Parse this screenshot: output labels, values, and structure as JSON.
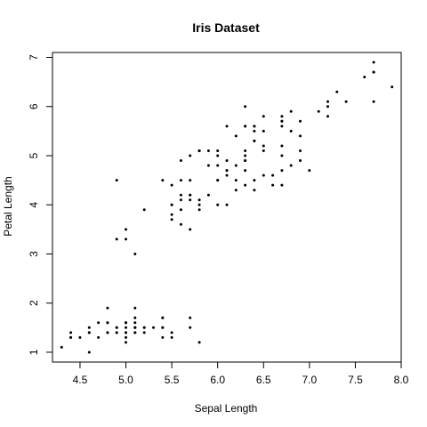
{
  "chart_data": {
    "type": "scatter",
    "title": "Iris Dataset",
    "xlabel": "Sepal Length",
    "ylabel": "Petal Length",
    "xlim": [
      4.2,
      8.0
    ],
    "ylim": [
      0.8,
      7.1
    ],
    "xticks": [
      "4.5",
      "5.0",
      "5.5",
      "6.0",
      "6.5",
      "7.0",
      "7.5",
      "8.0"
    ],
    "yticks": [
      "1",
      "2",
      "3",
      "4",
      "5",
      "6",
      "7"
    ],
    "grid": false,
    "point_color": "#000000",
    "points": [
      [
        5.1,
        1.4
      ],
      [
        4.9,
        1.4
      ],
      [
        4.7,
        1.3
      ],
      [
        4.6,
        1.5
      ],
      [
        5.0,
        1.4
      ],
      [
        5.4,
        1.7
      ],
      [
        4.6,
        1.4
      ],
      [
        5.0,
        1.5
      ],
      [
        4.4,
        1.4
      ],
      [
        4.9,
        1.5
      ],
      [
        5.4,
        1.5
      ],
      [
        4.8,
        1.6
      ],
      [
        4.8,
        1.4
      ],
      [
        4.3,
        1.1
      ],
      [
        5.8,
        1.2
      ],
      [
        5.7,
        1.5
      ],
      [
        5.4,
        1.3
      ],
      [
        5.1,
        1.4
      ],
      [
        5.7,
        1.7
      ],
      [
        5.1,
        1.5
      ],
      [
        5.4,
        1.7
      ],
      [
        5.1,
        1.5
      ],
      [
        4.6,
        1.0
      ],
      [
        5.1,
        1.7
      ],
      [
        4.8,
        1.9
      ],
      [
        5.0,
        1.6
      ],
      [
        5.0,
        1.6
      ],
      [
        5.2,
        1.5
      ],
      [
        5.2,
        1.4
      ],
      [
        4.7,
        1.6
      ],
      [
        4.8,
        1.6
      ],
      [
        5.4,
        1.5
      ],
      [
        5.2,
        1.5
      ],
      [
        5.5,
        1.4
      ],
      [
        4.9,
        1.5
      ],
      [
        5.0,
        1.2
      ],
      [
        5.5,
        1.3
      ],
      [
        4.9,
        1.4
      ],
      [
        4.4,
        1.3
      ],
      [
        5.1,
        1.5
      ],
      [
        5.0,
        1.3
      ],
      [
        4.5,
        1.3
      ],
      [
        4.4,
        1.3
      ],
      [
        5.0,
        1.6
      ],
      [
        5.1,
        1.9
      ],
      [
        4.8,
        1.4
      ],
      [
        5.1,
        1.6
      ],
      [
        4.6,
        1.4
      ],
      [
        5.3,
        1.5
      ],
      [
        5.0,
        1.4
      ],
      [
        7.0,
        4.7
      ],
      [
        6.4,
        4.5
      ],
      [
        6.9,
        4.9
      ],
      [
        5.5,
        4.0
      ],
      [
        6.5,
        4.6
      ],
      [
        5.7,
        4.5
      ],
      [
        6.3,
        4.7
      ],
      [
        4.9,
        3.3
      ],
      [
        6.6,
        4.6
      ],
      [
        5.2,
        3.9
      ],
      [
        5.0,
        3.5
      ],
      [
        5.9,
        4.2
      ],
      [
        6.0,
        4.0
      ],
      [
        6.1,
        4.7
      ],
      [
        5.6,
        3.6
      ],
      [
        6.7,
        4.4
      ],
      [
        5.6,
        4.5
      ],
      [
        5.8,
        4.1
      ],
      [
        6.2,
        4.5
      ],
      [
        5.6,
        3.9
      ],
      [
        5.9,
        4.8
      ],
      [
        6.1,
        4.0
      ],
      [
        6.3,
        4.9
      ],
      [
        6.1,
        4.7
      ],
      [
        6.4,
        4.3
      ],
      [
        6.6,
        4.4
      ],
      [
        6.8,
        4.8
      ],
      [
        6.7,
        5.0
      ],
      [
        6.0,
        4.5
      ],
      [
        5.7,
        3.5
      ],
      [
        5.5,
        3.8
      ],
      [
        5.5,
        3.7
      ],
      [
        5.8,
        3.9
      ],
      [
        6.0,
        5.1
      ],
      [
        5.4,
        4.5
      ],
      [
        6.0,
        4.5
      ],
      [
        6.7,
        4.7
      ],
      [
        6.3,
        4.4
      ],
      [
        5.6,
        4.1
      ],
      [
        5.5,
        4.0
      ],
      [
        5.5,
        4.4
      ],
      [
        6.1,
        4.6
      ],
      [
        5.8,
        4.0
      ],
      [
        5.0,
        3.3
      ],
      [
        5.6,
        4.2
      ],
      [
        5.7,
        4.2
      ],
      [
        5.7,
        4.2
      ],
      [
        6.2,
        4.3
      ],
      [
        5.1,
        3.0
      ],
      [
        5.7,
        4.1
      ],
      [
        6.3,
        6.0
      ],
      [
        5.8,
        5.1
      ],
      [
        7.1,
        5.9
      ],
      [
        6.3,
        5.6
      ],
      [
        6.5,
        5.8
      ],
      [
        7.6,
        6.6
      ],
      [
        4.9,
        4.5
      ],
      [
        7.3,
        6.3
      ],
      [
        6.7,
        5.8
      ],
      [
        7.2,
        6.1
      ],
      [
        6.5,
        5.1
      ],
      [
        6.4,
        5.3
      ],
      [
        6.8,
        5.5
      ],
      [
        5.7,
        5.0
      ],
      [
        5.8,
        5.1
      ],
      [
        6.4,
        5.3
      ],
      [
        6.5,
        5.5
      ],
      [
        7.7,
        6.7
      ],
      [
        7.7,
        6.9
      ],
      [
        6.0,
        5.0
      ],
      [
        6.9,
        5.7
      ],
      [
        5.6,
        4.9
      ],
      [
        7.7,
        6.7
      ],
      [
        6.3,
        4.9
      ],
      [
        6.7,
        5.7
      ],
      [
        7.2,
        6.0
      ],
      [
        6.2,
        4.8
      ],
      [
        6.1,
        4.9
      ],
      [
        6.4,
        5.6
      ],
      [
        7.2,
        5.8
      ],
      [
        7.4,
        6.1
      ],
      [
        7.9,
        6.4
      ],
      [
        6.4,
        5.6
      ],
      [
        6.3,
        5.1
      ],
      [
        6.1,
        5.6
      ],
      [
        7.7,
        6.1
      ],
      [
        6.3,
        5.6
      ],
      [
        6.4,
        5.5
      ],
      [
        6.0,
        4.8
      ],
      [
        6.9,
        5.4
      ],
      [
        6.7,
        5.6
      ],
      [
        6.9,
        5.1
      ],
      [
        5.8,
        5.1
      ],
      [
        6.8,
        5.9
      ],
      [
        6.7,
        5.7
      ],
      [
        6.7,
        5.2
      ],
      [
        6.3,
        5.0
      ],
      [
        6.5,
        5.2
      ],
      [
        6.2,
        5.4
      ],
      [
        5.9,
        5.1
      ]
    ]
  }
}
